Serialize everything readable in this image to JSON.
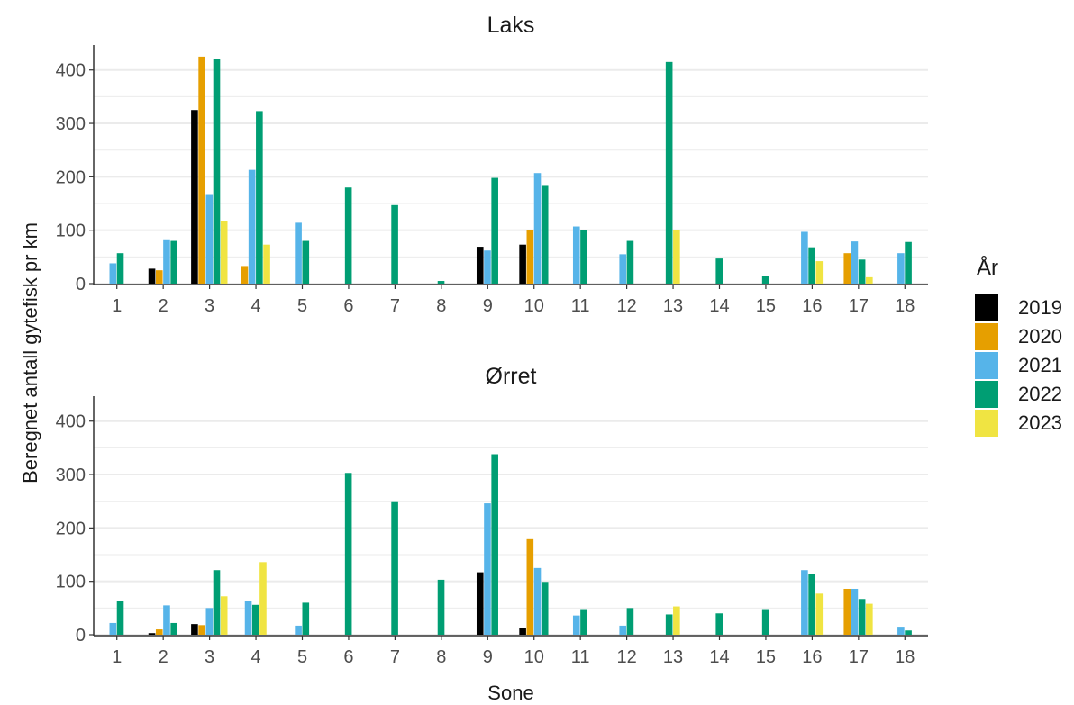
{
  "chart_data": [
    {
      "type": "bar",
      "title": "Laks",
      "categories": [
        "1",
        "2",
        "3",
        "4",
        "5",
        "6",
        "7",
        "8",
        "9",
        "10",
        "11",
        "12",
        "13",
        "14",
        "15",
        "16",
        "17",
        "18"
      ],
      "ylim": [
        0,
        440
      ],
      "yticks": [
        0,
        100,
        200,
        300,
        400
      ],
      "series": [
        {
          "name": "2019",
          "values": [
            null,
            28,
            325,
            null,
            null,
            null,
            null,
            null,
            69,
            73,
            null,
            null,
            null,
            null,
            null,
            null,
            null,
            null
          ]
        },
        {
          "name": "2020",
          "values": [
            null,
            25,
            425,
            33,
            null,
            null,
            null,
            null,
            null,
            100,
            null,
            null,
            null,
            null,
            null,
            null,
            57,
            null
          ]
        },
        {
          "name": "2021",
          "values": [
            38,
            83,
            166,
            213,
            114,
            null,
            null,
            null,
            62,
            207,
            107,
            55,
            null,
            null,
            null,
            97,
            79,
            57
          ]
        },
        {
          "name": "2022",
          "values": [
            57,
            80,
            420,
            323,
            80,
            180,
            147,
            5,
            198,
            183,
            101,
            80,
            415,
            47,
            14,
            68,
            45,
            78
          ]
        },
        {
          "name": "2023",
          "values": [
            null,
            null,
            118,
            73,
            null,
            null,
            null,
            null,
            null,
            null,
            null,
            null,
            100,
            null,
            null,
            42,
            12,
            null
          ]
        }
      ]
    },
    {
      "type": "bar",
      "title": "Ørret",
      "categories": [
        "1",
        "2",
        "3",
        "4",
        "5",
        "6",
        "7",
        "8",
        "9",
        "10",
        "11",
        "12",
        "13",
        "14",
        "15",
        "16",
        "17",
        "18"
      ],
      "ylim": [
        0,
        440
      ],
      "yticks": [
        0,
        100,
        200,
        300,
        400
      ],
      "series": [
        {
          "name": "2019",
          "values": [
            null,
            3,
            20,
            null,
            null,
            null,
            null,
            null,
            117,
            12,
            null,
            null,
            null,
            null,
            null,
            null,
            null,
            null
          ]
        },
        {
          "name": "2020",
          "values": [
            null,
            10,
            18,
            null,
            null,
            null,
            null,
            null,
            null,
            179,
            null,
            null,
            null,
            null,
            null,
            null,
            86,
            null
          ]
        },
        {
          "name": "2021",
          "values": [
            22,
            55,
            50,
            64,
            17,
            null,
            null,
            null,
            246,
            125,
            36,
            17,
            null,
            null,
            null,
            121,
            86,
            15
          ]
        },
        {
          "name": "2022",
          "values": [
            64,
            22,
            121,
            56,
            60,
            303,
            250,
            103,
            338,
            99,
            48,
            50,
            38,
            40,
            48,
            114,
            67,
            8
          ]
        },
        {
          "name": "2023",
          "values": [
            null,
            null,
            72,
            136,
            null,
            null,
            null,
            null,
            null,
            null,
            null,
            null,
            53,
            null,
            null,
            77,
            58,
            null
          ]
        }
      ]
    }
  ],
  "axis": {
    "xlabel": "Sone",
    "ylabel": "Beregnet antall gytefisk pr km"
  },
  "legend": {
    "title": "År",
    "placement": "right",
    "items": [
      {
        "label": "2019",
        "color": "#000000"
      },
      {
        "label": "2020",
        "color": "#E69F00"
      },
      {
        "label": "2021",
        "color": "#56B4E9"
      },
      {
        "label": "2022",
        "color": "#009E73"
      },
      {
        "label": "2023",
        "color": "#F0E442"
      }
    ]
  },
  "style": {
    "gridline_color": "#ebebeb",
    "axis_color": "#333333",
    "tick_label_color": "#4d4d4d"
  }
}
